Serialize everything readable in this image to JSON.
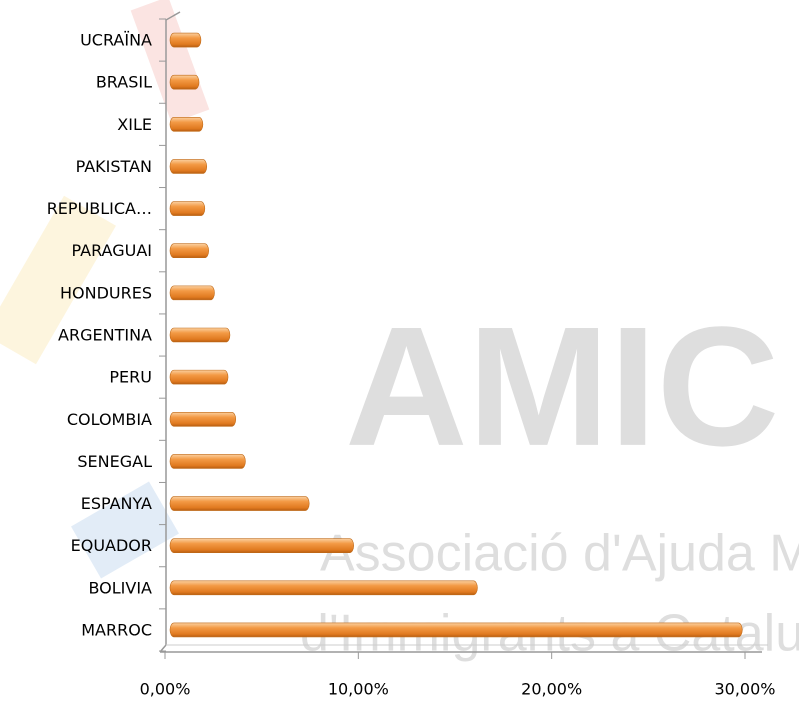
{
  "watermark": {
    "logo": "AMIC",
    "line1": "Associació d'Ajuda Mútua",
    "line2": "d'Immigrants a Catalunya"
  },
  "chart_data": {
    "type": "hbar",
    "categories": [
      "UCRAÏNA",
      "BRASIL",
      "XILE",
      "PAKISTAN",
      "REPUBLICA…",
      "PARAGUAI",
      "HONDURES",
      "ARGENTINA",
      "PERU",
      "COLOMBIA",
      "SENEGAL",
      "ESPANYA",
      "EQUADOR",
      "BOLIVIA",
      "MARROC"
    ],
    "values": [
      1.6,
      1.5,
      1.7,
      1.9,
      1.8,
      2.0,
      2.3,
      3.1,
      3.0,
      3.4,
      3.9,
      7.2,
      9.5,
      15.9,
      29.6
    ],
    "color": "#f0923a",
    "xlim": [
      0,
      30
    ],
    "xticks": [
      {
        "value": 0,
        "label": "0,00%"
      },
      {
        "value": 10,
        "label": "10,00%"
      },
      {
        "value": 20,
        "label": "20,00%"
      },
      {
        "value": 30,
        "label": "30,00%"
      }
    ]
  }
}
